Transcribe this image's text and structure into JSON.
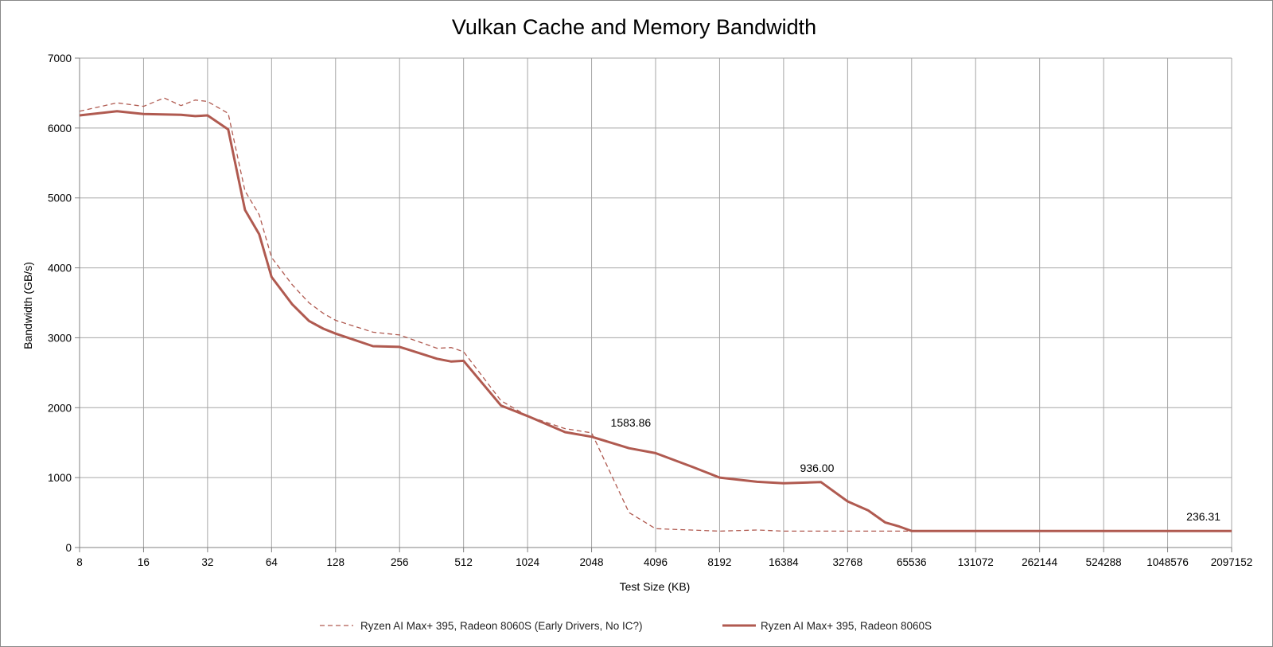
{
  "chart_data": {
    "type": "line",
    "title": "Vulkan Cache and Memory Bandwidth",
    "xlabel": "Test Size (KB)",
    "ylabel": "Bandwidth (GB/s)",
    "x_scale": "log2",
    "xlim": [
      8,
      2097152
    ],
    "ylim": [
      0,
      7000
    ],
    "y_ticks": [
      0,
      1000,
      2000,
      3000,
      4000,
      5000,
      6000,
      7000
    ],
    "x_ticks": [
      "8",
      "16",
      "32",
      "64",
      "128",
      "256",
      "512",
      "1024",
      "2048",
      "4096",
      "8192",
      "16384",
      "32768",
      "65536",
      "131072",
      "262144",
      "524288",
      "1048576",
      "2097152"
    ],
    "grid": true,
    "legend_position": "bottom",
    "series": [
      {
        "name": "Ryzen AI Max+ 395, Radeon 8060S (Early Drivers, No IC?)",
        "style": "dashed",
        "color": "#b05a50",
        "points": [
          [
            8,
            6240
          ],
          [
            12,
            6360
          ],
          [
            16,
            6310
          ],
          [
            20,
            6430
          ],
          [
            24,
            6320
          ],
          [
            28,
            6400
          ],
          [
            32,
            6380
          ],
          [
            40,
            6210
          ],
          [
            48,
            5100
          ],
          [
            56,
            4760
          ],
          [
            64,
            4150
          ],
          [
            80,
            3760
          ],
          [
            96,
            3500
          ],
          [
            112,
            3350
          ],
          [
            128,
            3250
          ],
          [
            192,
            3080
          ],
          [
            256,
            3040
          ],
          [
            384,
            2850
          ],
          [
            448,
            2860
          ],
          [
            512,
            2800
          ],
          [
            768,
            2100
          ],
          [
            1024,
            1880
          ],
          [
            1536,
            1700
          ],
          [
            2048,
            1640
          ],
          [
            3072,
            500
          ],
          [
            4096,
            270
          ],
          [
            8192,
            235
          ],
          [
            12288,
            250
          ],
          [
            16384,
            235
          ],
          [
            32768,
            235
          ],
          [
            65536,
            235
          ]
        ]
      },
      {
        "name": "Ryzen AI Max+ 395, Radeon 8060S",
        "style": "solid",
        "color": "#b05a50",
        "points": [
          [
            8,
            6180
          ],
          [
            12,
            6240
          ],
          [
            16,
            6200
          ],
          [
            24,
            6190
          ],
          [
            28,
            6170
          ],
          [
            32,
            6180
          ],
          [
            40,
            5980
          ],
          [
            48,
            4830
          ],
          [
            56,
            4480
          ],
          [
            64,
            3870
          ],
          [
            80,
            3480
          ],
          [
            96,
            3240
          ],
          [
            112,
            3130
          ],
          [
            128,
            3060
          ],
          [
            192,
            2880
          ],
          [
            256,
            2870
          ],
          [
            384,
            2700
          ],
          [
            448,
            2660
          ],
          [
            512,
            2670
          ],
          [
            768,
            2030
          ],
          [
            1024,
            1880
          ],
          [
            1536,
            1650
          ],
          [
            2048,
            1583.86
          ],
          [
            3072,
            1420
          ],
          [
            4096,
            1350
          ],
          [
            6144,
            1150
          ],
          [
            8192,
            1000
          ],
          [
            12288,
            940
          ],
          [
            16384,
            920
          ],
          [
            24576,
            936
          ],
          [
            32768,
            660
          ],
          [
            40960,
            530
          ],
          [
            49152,
            360
          ],
          [
            57344,
            300
          ],
          [
            65536,
            236.31
          ],
          [
            2097152,
            236.31
          ]
        ]
      }
    ],
    "annotations": [
      {
        "x": 2048,
        "y": 1583.86,
        "text": "1583.86"
      },
      {
        "x": 24576,
        "y": 936,
        "text": "936.00"
      },
      {
        "x": 2097152,
        "y": 236.31,
        "text": "236.31"
      }
    ]
  }
}
